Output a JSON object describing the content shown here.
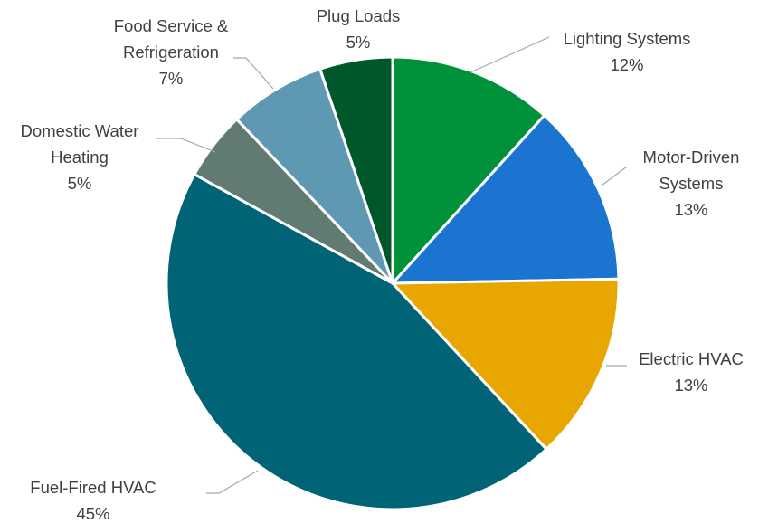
{
  "chart_data": {
    "type": "pie",
    "title": "",
    "start_angle_deg": 0,
    "direction": "clockwise",
    "slices": [
      {
        "name": [
          "Lighting Systems"
        ],
        "pct_label": "12%",
        "value": 11.7,
        "color": "#00923a"
      },
      {
        "name": [
          "Motor-Driven",
          "Systems"
        ],
        "pct_label": "13%",
        "value": 13.0,
        "color": "#1b75d0"
      },
      {
        "name": [
          "Electric HVAC"
        ],
        "pct_label": "13%",
        "value": 13.4,
        "color": "#e8a700"
      },
      {
        "name": [
          "Fuel-Fired HVAC"
        ],
        "pct_label": "45%",
        "value": 44.9,
        "color": "#006476"
      },
      {
        "name": [
          "Domestic Water",
          "Heating"
        ],
        "pct_label": "5%",
        "value": 4.9,
        "color": "#617b73"
      },
      {
        "name": [
          "Food Service &",
          "Refrigeration"
        ],
        "pct_label": "7%",
        "value": 6.9,
        "color": "#5e98b2"
      },
      {
        "name": [
          "Plug Loads"
        ],
        "pct_label": "5%",
        "value": 5.2,
        "color": "#00572a"
      }
    ]
  }
}
